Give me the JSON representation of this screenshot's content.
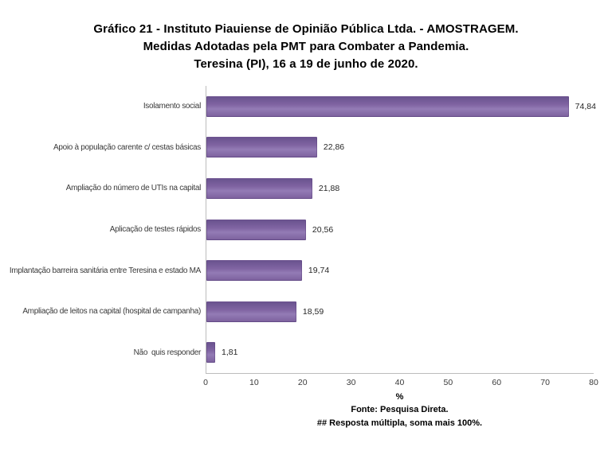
{
  "chart_data": {
    "type": "bar",
    "orientation": "horizontal",
    "title": "Gráfico 21 - Instituto Piauiense de Opinião Pública Ltda. - AMOSTRAGEM. Medidas Adotadas pela PMT para Combater a Pandemia. Teresina (PI), 16 a 19 de junho de 2020.",
    "title_lines": [
      "Gráfico 21 - Instituto Piauiense de Opinião Pública Ltda. - AMOSTRAGEM.",
      "Medidas Adotadas pela PMT para Combater a Pandemia.",
      "Teresina (PI), 16 a 19 de junho de 2020."
    ],
    "categories": [
      "Isolamento social",
      "Apoio à população carente c/ cestas básicas",
      "Ampliação do número de UTIs na capital",
      "Aplicação de testes rápidos",
      "Implantação barreira sanitária entre Teresina e estado MA",
      "Ampliação de leitos na capital (hospital de campanha)",
      "Não  quis responder"
    ],
    "values": [
      74.84,
      22.86,
      21.88,
      20.56,
      19.74,
      18.59,
      1.81
    ],
    "value_labels": [
      "74,84",
      "22,86",
      "21,88",
      "20,56",
      "19,74",
      "18,59",
      "1,81"
    ],
    "xlabel": "%",
    "xlim": [
      0,
      80
    ],
    "xticks": [
      0,
      10,
      20,
      30,
      40,
      50,
      60,
      70,
      80
    ],
    "grid": false,
    "legend": false,
    "bar_color": "#8064a2",
    "axis_line_color": "#bdbdbd"
  },
  "footer": {
    "source": "Fonte: Pesquisa Direta.",
    "note": "## Resposta múltipla, soma mais 100%."
  }
}
